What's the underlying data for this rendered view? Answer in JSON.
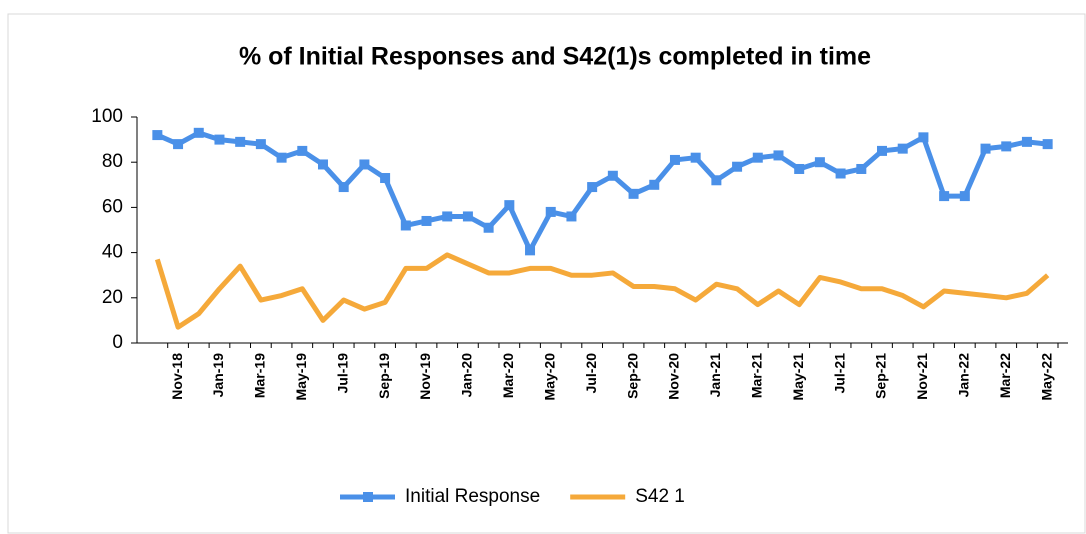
{
  "chart_data": {
    "type": "line",
    "title": "% of Initial Responses and S42(1)s completed in time",
    "categories": [
      null,
      "Nov-18",
      null,
      "Jan-19",
      null,
      "Mar-19",
      null,
      "May-19",
      null,
      "Jul-19",
      null,
      "Sep-19",
      null,
      "Nov-19",
      null,
      "Jan-20",
      null,
      "Mar-20",
      null,
      "May-20",
      null,
      "Jul-20",
      null,
      "Sep-20",
      null,
      "Nov-20",
      null,
      "Jan-21",
      null,
      "Mar-21",
      null,
      "May-21",
      null,
      "Jul-21",
      null,
      "Sep-21",
      null,
      "Nov-21",
      null,
      "Jan-22",
      null,
      "Mar-22",
      null,
      "May-22"
    ],
    "series": [
      {
        "name": "Initial Response",
        "color": "#4a90e8",
        "values": [
          92,
          88,
          93,
          90,
          89,
          88,
          82,
          85,
          79,
          69,
          79,
          73,
          52,
          54,
          56,
          56,
          51,
          61,
          41,
          58,
          56,
          69,
          74,
          66,
          70,
          81,
          82,
          72,
          78,
          82,
          83,
          77,
          80,
          75,
          77,
          85,
          86,
          91,
          65,
          65,
          86,
          87,
          89,
          88
        ]
      },
      {
        "name": "S42 1",
        "color": "#f5a93a",
        "values": [
          37,
          7,
          13,
          24,
          34,
          19,
          21,
          24,
          10,
          19,
          15,
          18,
          33,
          33,
          39,
          35,
          31,
          31,
          33,
          33,
          30,
          30,
          31,
          25,
          25,
          24,
          19,
          26,
          24,
          17,
          23,
          17,
          29,
          27,
          24,
          24,
          21,
          16,
          23,
          22,
          21,
          20,
          22,
          30
        ]
      }
    ],
    "ylim": [
      0,
      100
    ],
    "yticks": [
      0,
      20,
      40,
      60,
      80,
      100
    ],
    "legend": "bottom"
  }
}
